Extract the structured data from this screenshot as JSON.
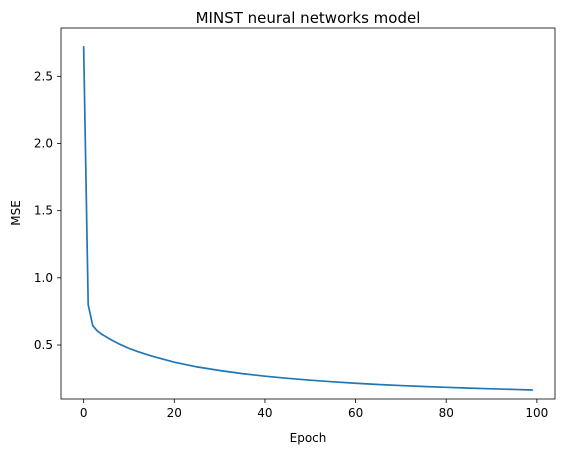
{
  "chart_data": {
    "type": "line",
    "title": "MINST neural networks model",
    "xlabel": "Epoch",
    "ylabel": "MSE",
    "xlim": [
      -5,
      104
    ],
    "ylim": [
      0.098,
      2.86
    ],
    "xticks": [
      0,
      20,
      40,
      60,
      80,
      100
    ],
    "xtick_labels": [
      "0",
      "20",
      "40",
      "60",
      "80",
      "100"
    ],
    "yticks": [
      0.5,
      1.0,
      1.5,
      2.0,
      2.5
    ],
    "ytick_labels": [
      "0.5",
      "1.0",
      "1.5",
      "2.0",
      "2.5"
    ],
    "grid": false,
    "line_color": "#1f77b4",
    "series": [
      {
        "x": [
          0,
          1,
          2,
          3,
          4,
          5,
          6,
          8,
          10,
          12,
          15,
          20,
          25,
          30,
          35,
          40,
          45,
          50,
          55,
          60,
          65,
          70,
          75,
          80,
          85,
          90,
          95,
          99
        ],
        "values": [
          2.72,
          0.8,
          0.645,
          0.605,
          0.58,
          0.56,
          0.54,
          0.505,
          0.475,
          0.45,
          0.418,
          0.372,
          0.337,
          0.31,
          0.287,
          0.268,
          0.252,
          0.238,
          0.226,
          0.215,
          0.206,
          0.198,
          0.191,
          0.185,
          0.179,
          0.174,
          0.169,
          0.165
        ]
      }
    ]
  }
}
